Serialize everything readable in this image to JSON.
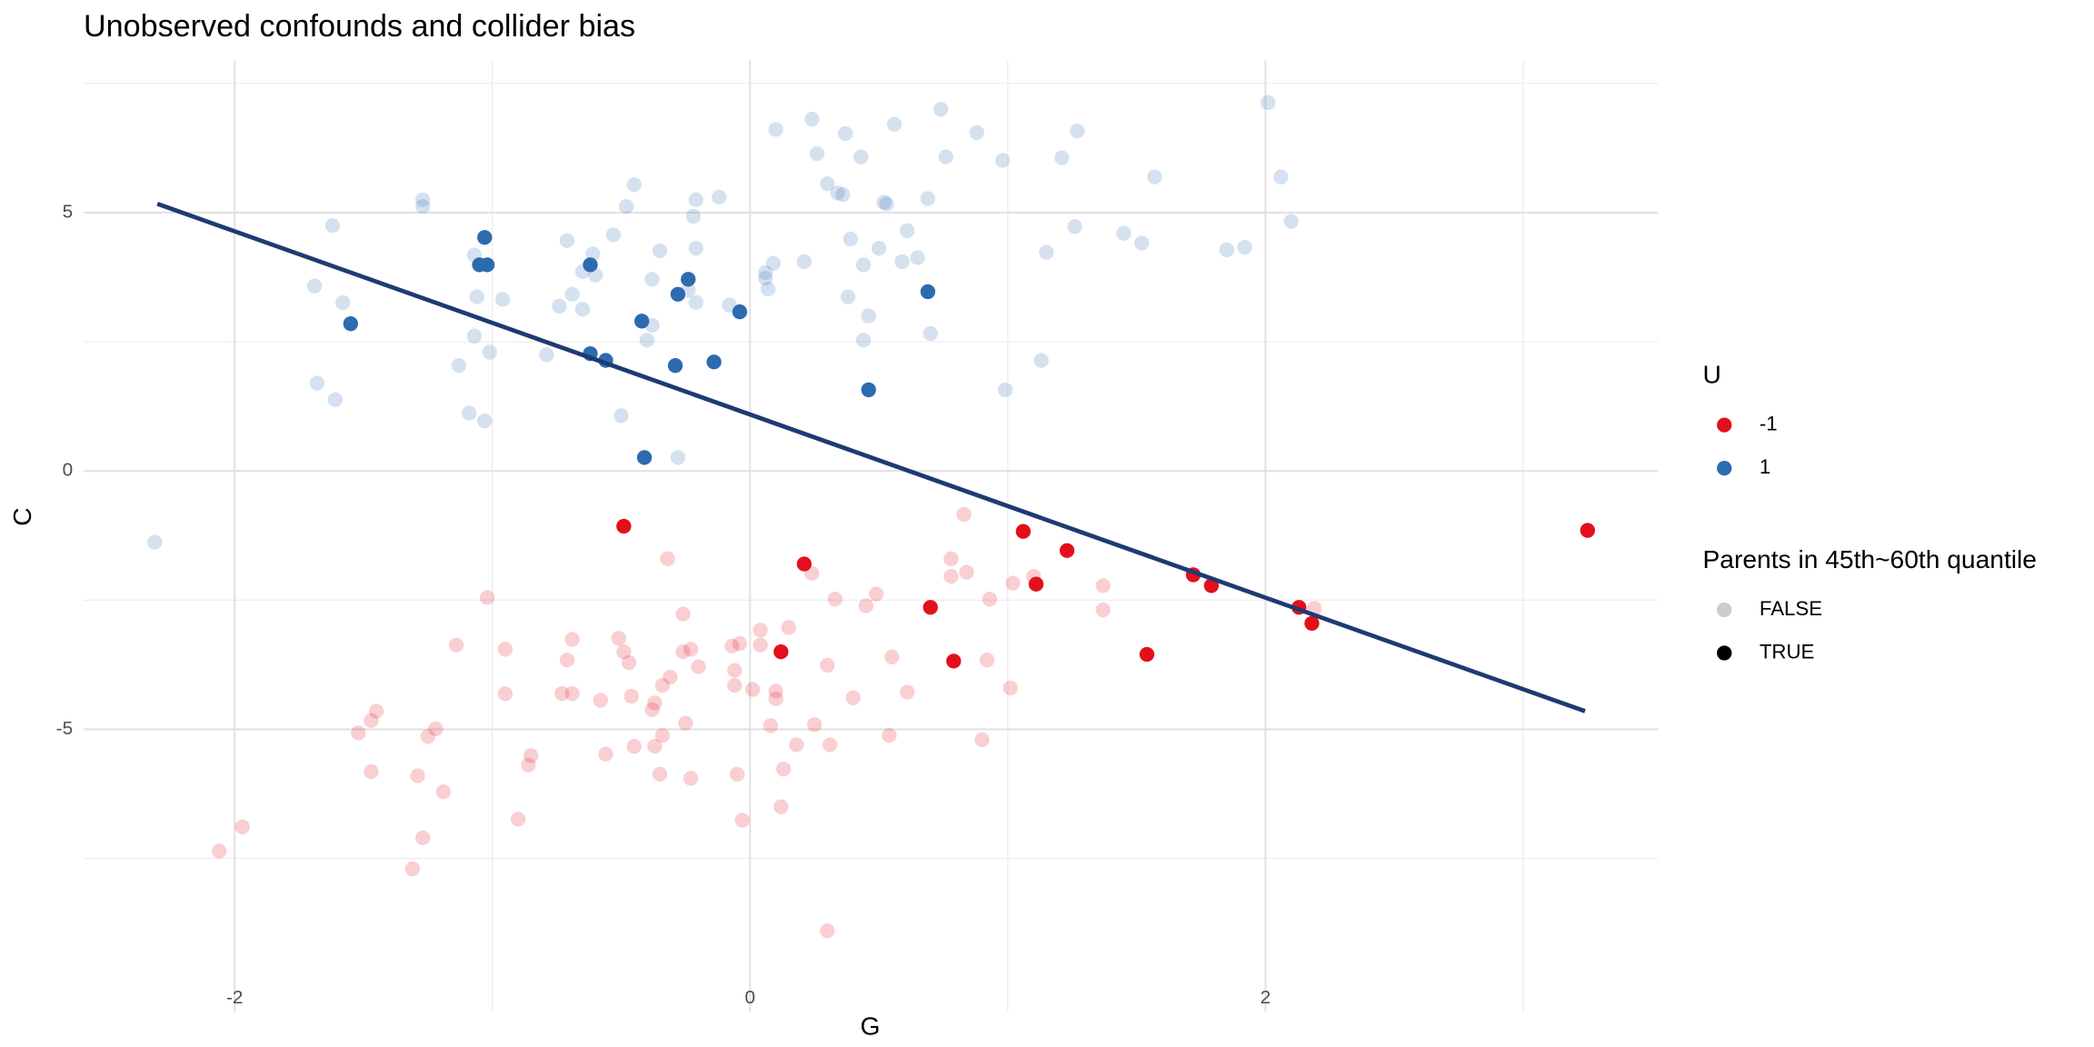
{
  "chart_data": {
    "type": "scatter",
    "title": "Unobserved confounds and collider bias",
    "x_label": "G",
    "y_label": "C",
    "xlim": [
      -2.586,
      3.524
    ],
    "ylim": [
      -10.47,
      7.94
    ],
    "xticks": [
      -2,
      0,
      2
    ],
    "yticks": [
      -5,
      0,
      5
    ],
    "xminor": [
      -1,
      1,
      3
    ],
    "yminor": [
      -7.5,
      -2.5,
      2.5,
      7.5
    ],
    "grid": true,
    "color_legend": {
      "title": "U",
      "entries": [
        {
          "label": "-1",
          "color": "#e3101c"
        },
        {
          "label": "1",
          "color": "#2c6bb0"
        }
      ]
    },
    "alpha_legend": {
      "title": "Parents in 45th~60th quantile",
      "entries": [
        {
          "label": "FALSE",
          "opacity": 0.2
        },
        {
          "label": "TRUE",
          "opacity": 1
        }
      ]
    },
    "series": [
      {
        "u": "1",
        "parents": "FALSE",
        "x": [
          -2.31,
          -1.62,
          -1.69,
          -1.58,
          -1.68,
          -1.61,
          -1.27,
          -1.27,
          -1.07,
          -1.06,
          -0.96,
          -1.07,
          -1.01,
          -1.13,
          -1.09,
          -1.03,
          -0.79,
          -0.74,
          -0.69,
          -0.65,
          -0.71,
          -0.61,
          -0.6,
          -0.65,
          -0.53,
          -0.48,
          -0.45,
          -0.35,
          -0.38,
          -0.38,
          -0.4,
          -0.5,
          -0.28,
          -0.21,
          -0.22,
          -0.21,
          -0.24,
          -0.21,
          -0.12,
          -0.08,
          0.06,
          0.07,
          0.06,
          0.09,
          0.1,
          0.21,
          0.24,
          0.26,
          0.3,
          0.34,
          0.36,
          0.37,
          0.39,
          0.38,
          0.43,
          0.44,
          0.44,
          0.46,
          0.5,
          0.52,
          0.53,
          0.56,
          0.59,
          0.61,
          0.65,
          0.69,
          0.7,
          0.74,
          0.76,
          0.88,
          0.98,
          0.99,
          1.15,
          1.13,
          1.21,
          1.26,
          1.27,
          1.45,
          1.52,
          1.57,
          1.85,
          1.92,
          2.01,
          2.06,
          2.1
        ],
        "y": [
          -1.38,
          4.75,
          3.58,
          3.26,
          1.7,
          1.38,
          5.25,
          5.12,
          4.18,
          3.37,
          3.32,
          2.61,
          2.3,
          2.04,
          1.12,
          0.97,
          2.25,
          3.19,
          3.42,
          3.86,
          4.46,
          4.2,
          3.79,
          3.13,
          4.57,
          5.12,
          5.54,
          4.26,
          3.71,
          2.82,
          2.53,
          1.07,
          0.26,
          5.25,
          4.93,
          4.31,
          3.5,
          3.26,
          5.3,
          3.21,
          3.73,
          3.52,
          3.84,
          4.02,
          6.61,
          4.05,
          6.81,
          6.14,
          5.56,
          5.38,
          5.35,
          6.53,
          4.49,
          3.37,
          6.08,
          3.99,
          2.53,
          3.0,
          4.31,
          5.2,
          5.17,
          6.71,
          4.05,
          4.65,
          4.13,
          5.27,
          2.66,
          7.0,
          6.08,
          6.55,
          6.01,
          1.57,
          4.23,
          2.14,
          6.06,
          4.73,
          6.58,
          4.6,
          4.41,
          5.69,
          4.28,
          4.33,
          7.13,
          5.69,
          4.83
        ]
      },
      {
        "u": "-1",
        "parents": "FALSE",
        "x": [
          -2.06,
          -1.97,
          -1.31,
          -1.27,
          -1.29,
          -1.47,
          -1.52,
          -1.47,
          -1.45,
          -1.25,
          -1.22,
          -1.19,
          -1.14,
          -1.02,
          -0.95,
          -0.95,
          -0.9,
          -0.86,
          -0.85,
          -0.73,
          -0.71,
          -0.69,
          -0.69,
          -0.58,
          -0.56,
          -0.51,
          -0.49,
          -0.47,
          -0.46,
          -0.45,
          -0.32,
          -0.31,
          -0.34,
          -0.37,
          -0.38,
          -0.37,
          -0.35,
          -0.34,
          -0.26,
          -0.26,
          -0.23,
          -0.2,
          -0.25,
          -0.23,
          -0.06,
          -0.06,
          -0.07,
          -0.04,
          -0.05,
          -0.03,
          0.01,
          0.04,
          0.04,
          0.08,
          0.1,
          0.1,
          0.13,
          0.12,
          0.15,
          0.18,
          0.24,
          0.25,
          0.3,
          0.31,
          0.3,
          0.33,
          0.4,
          0.45,
          0.49,
          0.55,
          0.54,
          0.61,
          0.78,
          0.78,
          0.84,
          0.83,
          0.9,
          0.92,
          0.93,
          1.01,
          1.02,
          1.1,
          1.37,
          1.37,
          2.19
        ],
        "y": [
          -7.36,
          -6.89,
          -7.7,
          -7.1,
          -5.9,
          -5.82,
          -5.07,
          -4.83,
          -4.65,
          -5.14,
          -4.99,
          -6.21,
          -3.37,
          -2.45,
          -3.45,
          -4.31,
          -6.74,
          -5.69,
          -5.51,
          -4.31,
          -3.66,
          -3.26,
          -4.31,
          -4.44,
          -5.48,
          -3.24,
          -3.5,
          -3.71,
          -4.36,
          -5.33,
          -1.7,
          -3.99,
          -4.15,
          -4.49,
          -4.62,
          -5.33,
          -5.87,
          -5.12,
          -2.77,
          -3.5,
          -3.45,
          -3.79,
          -4.88,
          -5.95,
          -3.86,
          -4.15,
          -3.39,
          -3.34,
          -5.87,
          -6.76,
          -4.23,
          -3.08,
          -3.37,
          -4.93,
          -4.26,
          -4.41,
          -5.77,
          -6.5,
          -3.03,
          -5.3,
          -1.98,
          -4.91,
          -3.76,
          -5.3,
          -8.9,
          -2.48,
          -4.39,
          -2.61,
          -2.38,
          -3.6,
          -5.12,
          -4.28,
          -1.7,
          -2.04,
          -1.96,
          -0.84,
          -5.2,
          -3.66,
          -2.48,
          -4.2,
          -2.17,
          -2.04,
          -2.22,
          -2.69,
          -2.66
        ]
      },
      {
        "u": "1",
        "parents": "TRUE",
        "x": [
          -1.03,
          -1.05,
          -1.02,
          -1.55,
          -0.62,
          -0.62,
          -0.56,
          -0.42,
          -0.28,
          -0.24,
          -0.04,
          -0.29,
          -0.14,
          0.69,
          0.46,
          -0.41
        ],
        "y": [
          4.52,
          3.99,
          3.99,
          2.85,
          3.99,
          2.27,
          2.14,
          2.9,
          3.42,
          3.71,
          3.08,
          2.04,
          2.11,
          3.47,
          1.57,
          0.26
        ]
      },
      {
        "u": "-1",
        "parents": "TRUE",
        "x": [
          -0.49,
          0.21,
          0.12,
          0.7,
          0.79,
          1.06,
          1.23,
          1.11,
          1.54,
          1.72,
          1.79,
          2.13,
          2.18,
          3.25
        ],
        "y": [
          -1.07,
          -1.8,
          -3.5,
          -2.64,
          -3.68,
          -1.17,
          -1.54,
          -2.19,
          -3.55,
          -2.01,
          -2.22,
          -2.64,
          -2.95,
          -1.15
        ]
      }
    ],
    "fit_line": {
      "x": [
        -2.3,
        3.24
      ],
      "y": [
        5.17,
        -4.65
      ],
      "color": "#1f3a73"
    }
  }
}
